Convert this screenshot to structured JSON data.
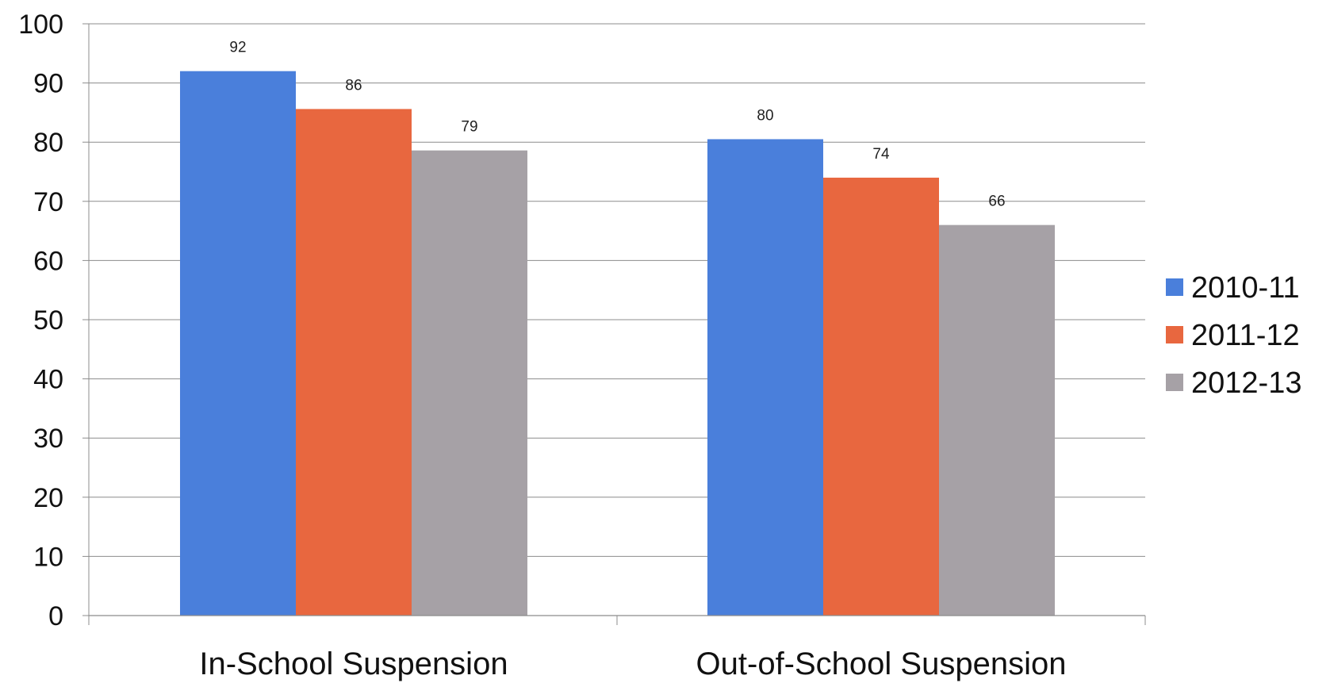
{
  "chart_data": {
    "type": "bar",
    "title": "",
    "xlabel": "",
    "ylabel": "",
    "categories": [
      "In-School Suspension",
      "Out-of-School Suspension"
    ],
    "series": [
      {
        "name": "2010-11",
        "values": [
          92,
          80
        ],
        "display_values": [
          92,
          80.5
        ],
        "color": "#4A7FDB"
      },
      {
        "name": "2011-12",
        "values": [
          86,
          74
        ],
        "display_values": [
          85.6,
          74
        ],
        "color": "#E8673F"
      },
      {
        "name": "2012-13",
        "values": [
          79,
          66
        ],
        "display_values": [
          78.6,
          66
        ],
        "color": "#A6A1A6"
      }
    ],
    "ylim": [
      0,
      100
    ],
    "yticks": [
      0,
      10,
      20,
      30,
      40,
      50,
      60,
      70,
      80,
      90,
      100
    ],
    "grid": true,
    "legend_position": "right"
  }
}
